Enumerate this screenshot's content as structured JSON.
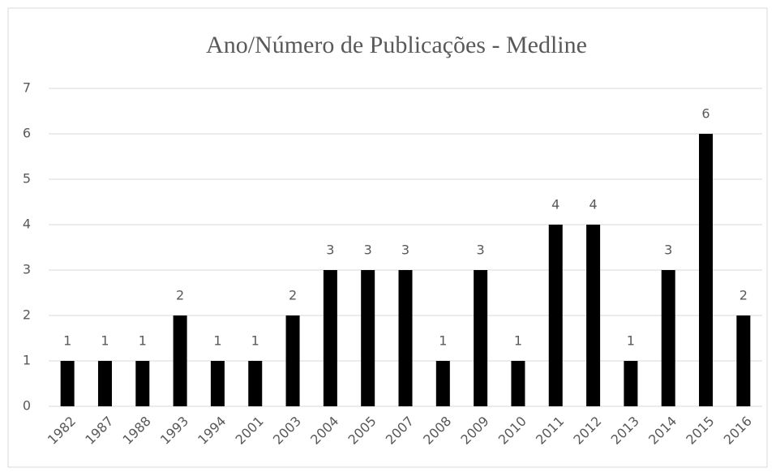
{
  "chart_data": {
    "type": "bar",
    "title": "Ano/Número de Publicações - Medline",
    "categories": [
      "1982",
      "1987",
      "1988",
      "1993",
      "1994",
      "2001",
      "2003",
      "2004",
      "2005",
      "2007",
      "2008",
      "2009",
      "2010",
      "2011",
      "2012",
      "2013",
      "2014",
      "2015",
      "2016"
    ],
    "values": [
      1,
      1,
      1,
      2,
      1,
      1,
      2,
      3,
      3,
      3,
      1,
      3,
      1,
      4,
      4,
      1,
      3,
      6,
      2
    ],
    "color": "#000000",
    "ylim": [
      0,
      7
    ],
    "yticks": [
      0,
      1,
      2,
      3,
      4,
      5,
      6,
      7
    ],
    "grid": true,
    "data_labels": true
  }
}
